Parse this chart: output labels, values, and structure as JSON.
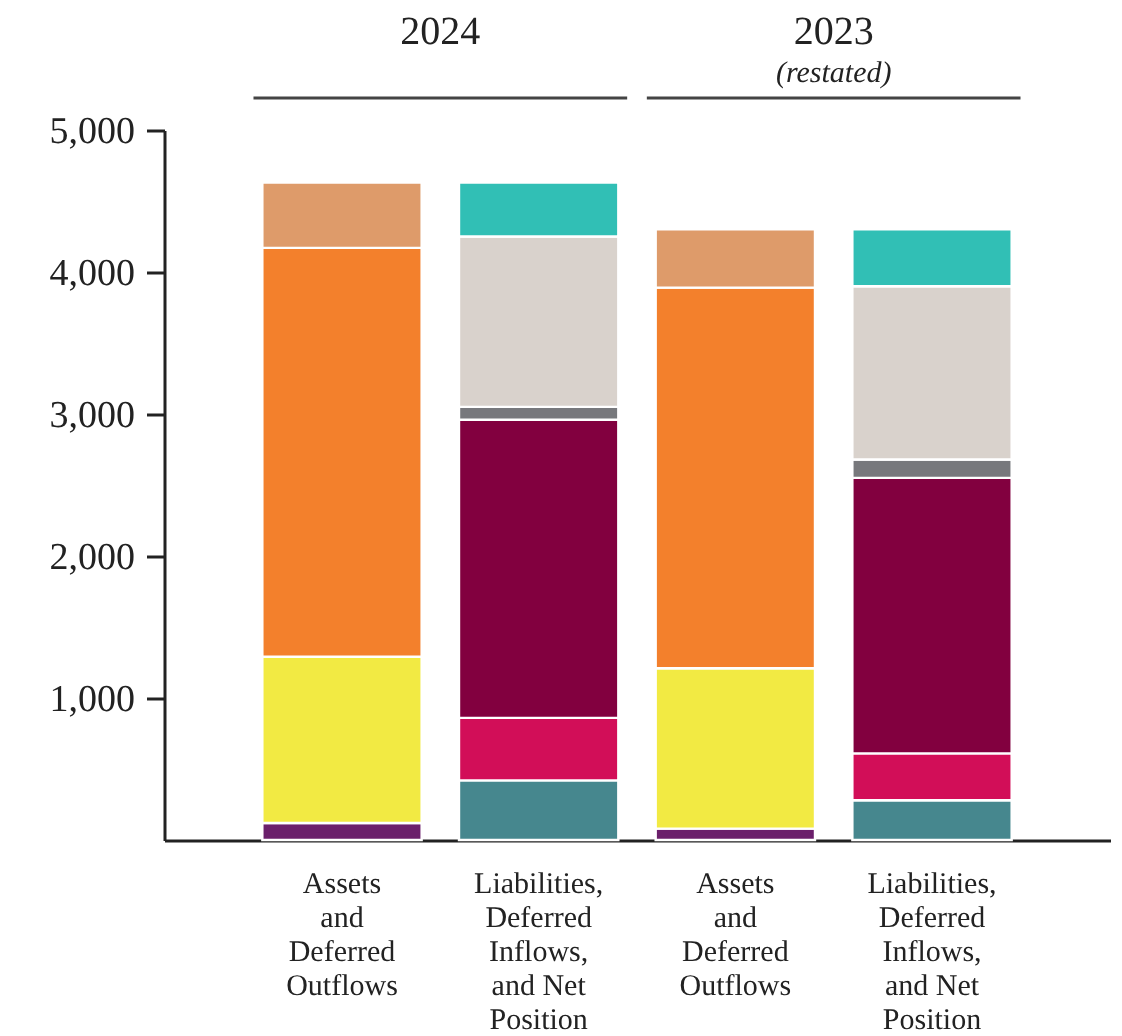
{
  "chart_data": {
    "type": "bar",
    "stacked": true,
    "categories": [
      "Assets and Deferred Outflows",
      "Liabilities, Deferred Inflows, and Net Position",
      "Assets and Deferred Outflows",
      "Liabilities, Deferred Inflows, and Net Position"
    ],
    "series": [
      {
        "color": "#6b1f6b",
        "values": [
          120,
          null,
          80,
          null
        ]
      },
      {
        "color": "#f2ea43",
        "values": [
          1170,
          null,
          1130,
          null
        ]
      },
      {
        "color": "#f3802c",
        "values": [
          2880,
          null,
          2680,
          null
        ]
      },
      {
        "color": "#de9b6a",
        "values": [
          460,
          null,
          410,
          null
        ]
      },
      {
        "color": "#46878e",
        "values": [
          null,
          420,
          null,
          280
        ]
      },
      {
        "color": "#d20e58",
        "values": [
          null,
          440,
          null,
          330
        ]
      },
      {
        "color": "#82003f",
        "values": [
          null,
          2100,
          null,
          1940
        ]
      },
      {
        "color": "#77787c",
        "values": [
          null,
          90,
          null,
          130
        ]
      },
      {
        "color": "#d9d2cc",
        "values": [
          null,
          1200,
          null,
          1220
        ]
      },
      {
        "color": "#31bfb5",
        "values": [
          null,
          380,
          null,
          400
        ]
      }
    ],
    "ylim": [
      0,
      5000
    ],
    "yticks": [
      {
        "value": 1000,
        "label": "1,000"
      },
      {
        "value": 2000,
        "label": "2,000"
      },
      {
        "value": 3000,
        "label": "3,000"
      },
      {
        "value": 4000,
        "label": "4,000"
      },
      {
        "value": 5000,
        "label": "5,000"
      }
    ],
    "annotations": [
      "2024",
      "2023 (restated)"
    ],
    "grid": false,
    "legend": false
  }
}
